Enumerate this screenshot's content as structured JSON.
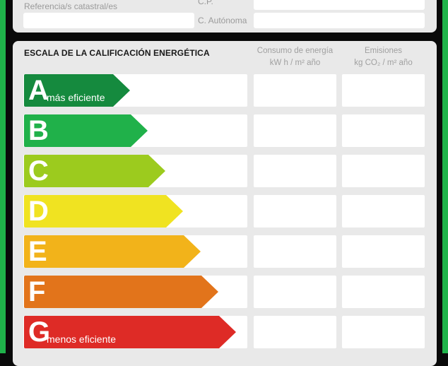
{
  "header_fields": {
    "referencia_label": "Referencia/s catastral/es",
    "cp_label": "C.P.",
    "autonoma_label": "C. Autónoma"
  },
  "scale": {
    "heading": "ESCALA DE LA CALIFICACIÓN ENERGÉTICA",
    "col_consumo_line1": "Consumo de energía",
    "col_consumo_line2": "kW h / m² año",
    "col_emisiones_line1": "Emisiones",
    "col_emisiones_line2": "kg CO₂ / m² año",
    "ratings": [
      {
        "letter": "A",
        "label": "más eficiente",
        "color": "#158a3e"
      },
      {
        "letter": "B",
        "label": "",
        "color": "#20b14a"
      },
      {
        "letter": "C",
        "label": "",
        "color": "#9ccb1e"
      },
      {
        "letter": "D",
        "label": "",
        "color": "#f0e321"
      },
      {
        "letter": "E",
        "label": "",
        "color": "#f2b31a"
      },
      {
        "letter": "F",
        "label": "",
        "color": "#e2741b"
      },
      {
        "letter": "G",
        "label": "menos eficiente",
        "color": "#de2b26"
      }
    ]
  },
  "colors": {
    "frame_green": "#1fb34a",
    "panel": "#e9e9e9",
    "field": "#ffffff"
  }
}
